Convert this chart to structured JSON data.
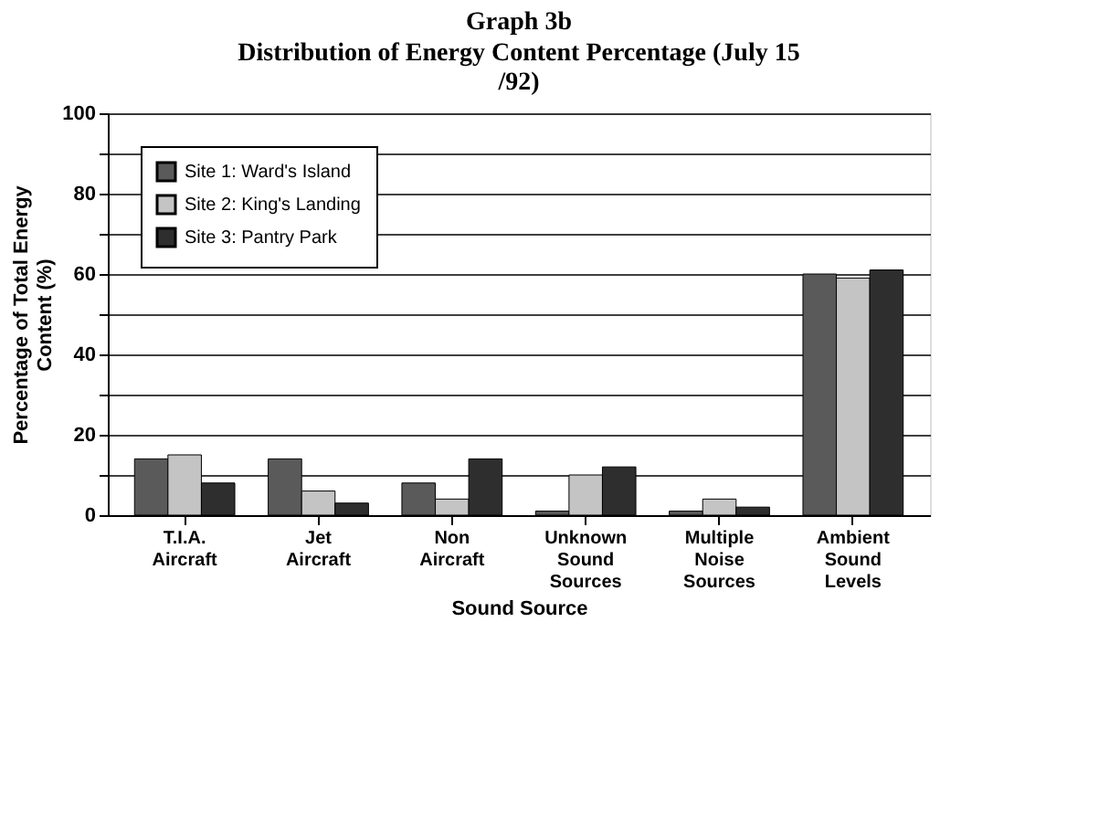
{
  "chart_data": {
    "type": "bar",
    "title": "Graph 3b",
    "subtitle": "Distribution of Energy Content Percentage (July 15 /92)",
    "xlabel": "Sound Source",
    "ylabel": "Percentage of Total Energy Content (%)",
    "categories": [
      "T.I.A.\nAircraft",
      "Jet\nAircraft",
      "Non\nAircraft",
      "Unknown\nSound\nSources",
      "Multiple\nNoise\nSources",
      "Ambient\nSound\nLevels"
    ],
    "series": [
      {
        "name": "Site 1: Ward's Island",
        "color": "#5a5a5a",
        "values": [
          14,
          14,
          8,
          1,
          1,
          60
        ]
      },
      {
        "name": "Site 2: King's Landing",
        "color": "#c4c4c4",
        "values": [
          15,
          6,
          4,
          10,
          4,
          59
        ]
      },
      {
        "name": "Site 3: Pantry Park",
        "color": "#2e2e2e",
        "values": [
          8,
          3,
          14,
          12,
          2,
          61
        ]
      }
    ],
    "ylim": [
      0,
      100
    ],
    "yticks": [
      0,
      {
        "value": 10,
        "label": null
      },
      20,
      {
        "value": 30,
        "label": null
      },
      40,
      {
        "value": 50,
        "label": null
      },
      60,
      {
        "value": 70,
        "label": null
      },
      80,
      {
        "value": 90,
        "label": null
      },
      100
    ],
    "grid": "y",
    "legend": "top left"
  }
}
